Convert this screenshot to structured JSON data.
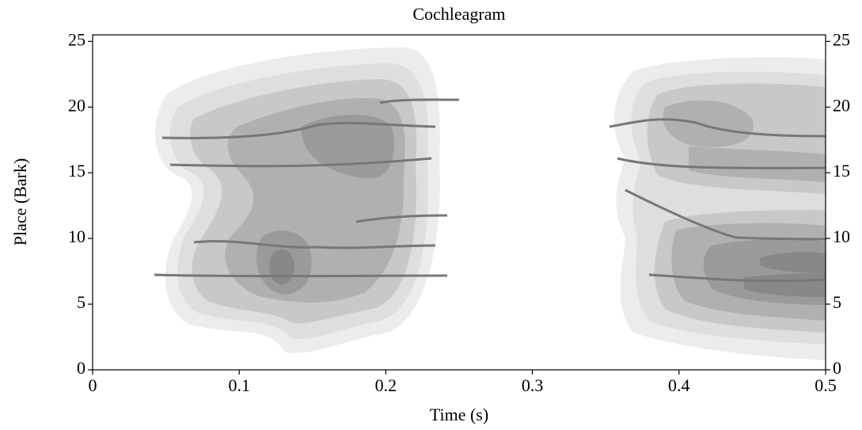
{
  "chart_data": {
    "type": "contour",
    "title": "Cochleagram",
    "xlabel": "Time (s)",
    "ylabel": "Place (Bark)",
    "xlim": [
      0,
      0.5
    ],
    "xticks": [
      0,
      0.1,
      0.2,
      0.3,
      0.4,
      0.5
    ],
    "ylim": [
      0,
      25.5
    ],
    "yticks": [
      0,
      5,
      10,
      15,
      20,
      25
    ],
    "y2lim": [
      0,
      25.5
    ],
    "y2ticks": [
      0,
      5,
      10,
      15,
      20,
      25
    ]
  }
}
